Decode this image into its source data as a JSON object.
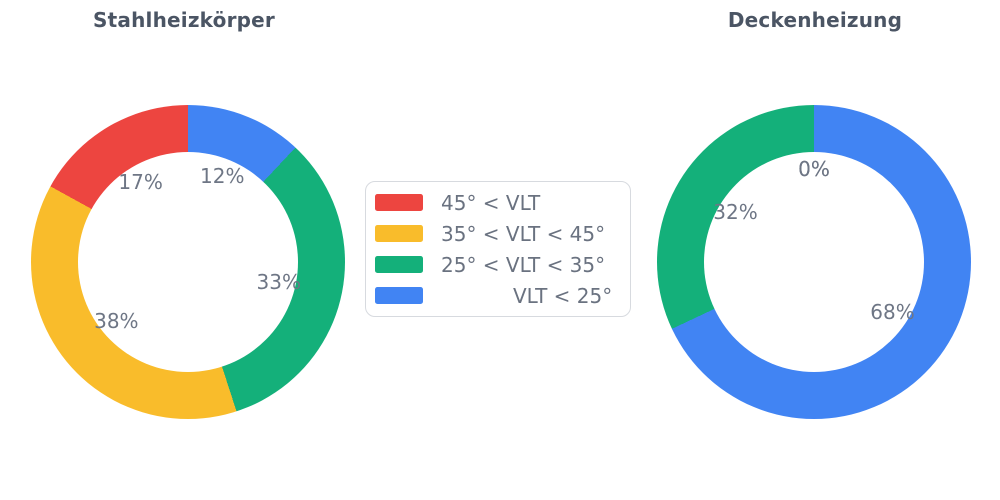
{
  "page": {
    "background": "#ffffff"
  },
  "text_colors": {
    "title": "#4b5564",
    "percent_label": "#6e7685",
    "legend_label": "#6a7280"
  },
  "palette": {
    "red": "#ed4540",
    "yellow": "#f9bc2b",
    "green": "#14b07a",
    "blue": "#4184f3"
  },
  "chart_data": [
    {
      "type": "pie",
      "variant": "donut",
      "title": "Stahlheizkörper",
      "categories": [
        "45° < VLT",
        "35° < VLT < 45°",
        "25° < VLT < 35°",
        "VLT < 25°"
      ],
      "values": [
        17,
        38,
        33,
        12
      ],
      "percent_labels": [
        "17%",
        "38%",
        "33%",
        "12%"
      ],
      "colors": [
        "#ed4540",
        "#f9bc2b",
        "#14b07a",
        "#4184f3"
      ],
      "start_angle": 90,
      "counterclock": true,
      "legend_position": "center-between-charts"
    },
    {
      "type": "pie",
      "variant": "donut",
      "title": "Deckenheizung",
      "categories": [
        "45° < VLT",
        "35° < VLT < 45°",
        "25° < VLT < 35°",
        "VLT < 25°"
      ],
      "values": [
        0,
        0,
        32,
        68
      ],
      "percent_labels": [
        "0%",
        "0%",
        "32%",
        "68%"
      ],
      "colors": [
        "#ed4540",
        "#f9bc2b",
        "#14b07a",
        "#4184f3"
      ],
      "start_angle": 90,
      "counterclock": true,
      "legend_position": "center-between-charts"
    }
  ],
  "legend": {
    "items": [
      {
        "label": "45° < VLT",
        "color": "#ed4540",
        "indent": false
      },
      {
        "label": "35° < VLT < 45°",
        "color": "#f9bc2b",
        "indent": false
      },
      {
        "label": "25° < VLT < 35°",
        "color": "#14b07a",
        "indent": false
      },
      {
        "label": "VLT < 25°",
        "color": "#4184f3",
        "indent": true
      }
    ]
  }
}
